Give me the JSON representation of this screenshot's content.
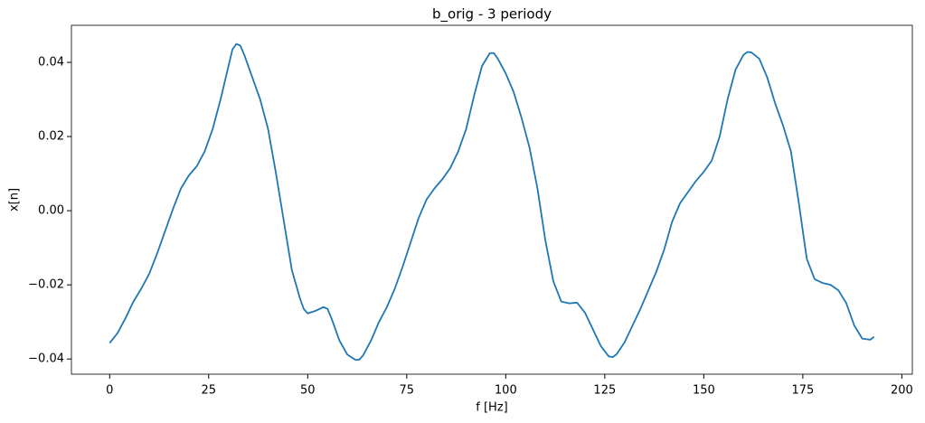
{
  "chart_data": {
    "type": "line",
    "title": "b_orig - 3 periody",
    "x_label": "f [Hz]",
    "y_label": "x[n]",
    "x": [
      0,
      2,
      4,
      6,
      8,
      10,
      12,
      14,
      16,
      18,
      20,
      22,
      24,
      26,
      28,
      30,
      31,
      32,
      33,
      34,
      36,
      38,
      40,
      42,
      44,
      46,
      48,
      49,
      50,
      52,
      54,
      55,
      56,
      58,
      60,
      62,
      63,
      64,
      66,
      68,
      70,
      72,
      74,
      76,
      78,
      80,
      82,
      84,
      86,
      88,
      90,
      92,
      94,
      96,
      97,
      98,
      100,
      102,
      104,
      106,
      108,
      110,
      112,
      114,
      116,
      118,
      120,
      122,
      124,
      126,
      127,
      128,
      130,
      132,
      134,
      136,
      138,
      140,
      142,
      144,
      146,
      148,
      150,
      152,
      154,
      156,
      158,
      160,
      161,
      162,
      164,
      166,
      168,
      170,
      172,
      174,
      176,
      178,
      180,
      182,
      184,
      186,
      188,
      190,
      192,
      193
    ],
    "series": [
      {
        "name": "b_orig",
        "color": "#1f77b4",
        "values": [
          -0.0357,
          -0.033,
          -0.029,
          -0.0245,
          -0.021,
          -0.017,
          -0.0115,
          -0.0055,
          0.0005,
          0.006,
          0.0095,
          0.012,
          0.016,
          0.022,
          0.03,
          0.039,
          0.0435,
          0.045,
          0.0445,
          0.042,
          0.036,
          0.03,
          0.022,
          0.01,
          -0.003,
          -0.016,
          -0.0235,
          -0.0265,
          -0.0277,
          -0.027,
          -0.026,
          -0.0265,
          -0.029,
          -0.035,
          -0.0388,
          -0.0402,
          -0.0402,
          -0.039,
          -0.035,
          -0.03,
          -0.026,
          -0.021,
          -0.015,
          -0.0085,
          -0.002,
          0.003,
          0.006,
          0.0085,
          0.0115,
          0.016,
          0.022,
          0.031,
          0.039,
          0.0425,
          0.0425,
          0.041,
          0.037,
          0.032,
          0.025,
          0.017,
          0.006,
          -0.008,
          -0.019,
          -0.0245,
          -0.025,
          -0.0248,
          -0.0275,
          -0.032,
          -0.0365,
          -0.0393,
          -0.0395,
          -0.0387,
          -0.0355,
          -0.031,
          -0.0265,
          -0.0215,
          -0.0165,
          -0.0105,
          -0.003,
          0.002,
          0.005,
          0.008,
          0.0105,
          0.0135,
          0.02,
          0.03,
          0.038,
          0.042,
          0.0428,
          0.0427,
          0.041,
          0.036,
          0.029,
          0.023,
          0.016,
          0.002,
          -0.013,
          -0.0185,
          -0.0195,
          -0.02,
          -0.0215,
          -0.025,
          -0.031,
          -0.0345,
          -0.0348,
          -0.034
        ]
      }
    ],
    "xlim": [
      -9.65,
      202.65
    ],
    "ylim": [
      -0.0441,
      0.05
    ],
    "xticks": [
      0,
      25,
      50,
      75,
      100,
      125,
      150,
      175,
      200
    ],
    "yticks": [
      {
        "value": -0.04,
        "label": "−0.04"
      },
      {
        "value": -0.02,
        "label": "−0.02"
      },
      {
        "value": 0,
        "label": "0.00"
      },
      0.02,
      0.04
    ],
    "grid": false
  }
}
